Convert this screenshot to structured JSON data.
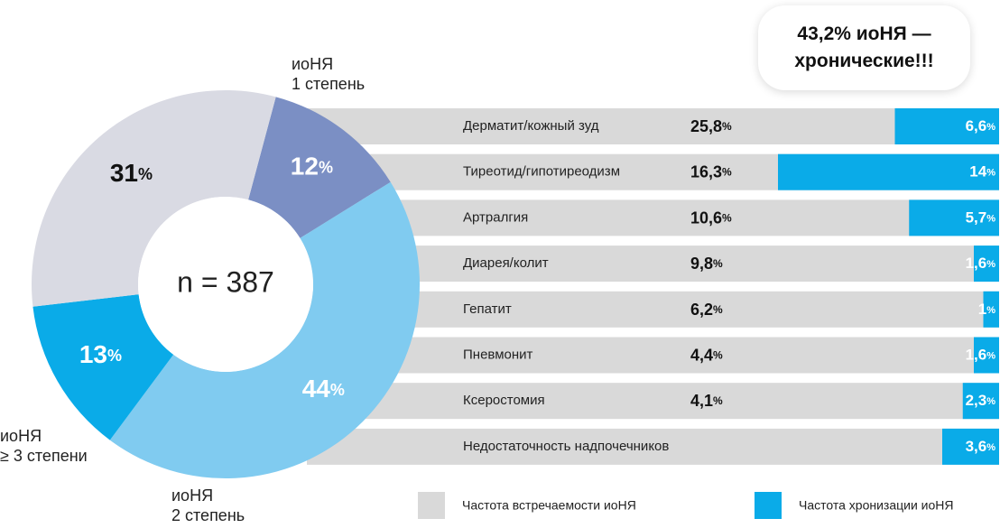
{
  "chart_data": [
    {
      "type": "donut",
      "center_label": "n = 387",
      "categories": [
        "иоНЯ\n1 степень",
        "иоНЯ\n2 степень",
        "иоНЯ\n≥ 3 степени",
        null
      ],
      "values": [
        12,
        44,
        13,
        31
      ],
      "value_labels": [
        "12%",
        "44%",
        "13%",
        "31%"
      ],
      "colors": [
        "#7b8fc4",
        "#80cbf0",
        "#0aabe8",
        "#d9dae3"
      ]
    },
    {
      "type": "bar",
      "annotation": "43,2% иоНЯ —\nхронические!!!",
      "categories": [
        "Дерматит/кожный зуд",
        "Тиреотид/гипотиреодизм",
        "Артралгия",
        "Диарея/колит",
        "Гепатит",
        "Пневмонит",
        "Ксеростомия",
        "Недостаточность надпочечников"
      ],
      "series": [
        {
          "name": "Частота встречаемости иоНЯ",
          "color": "#d9d9d9",
          "values": [
            25.8,
            16.3,
            10.6,
            9.8,
            6.2,
            4.4,
            4.1,
            null
          ],
          "value_labels": [
            "25,8%",
            "16,3%",
            "10,6%",
            "9,8%",
            "6,2%",
            "4,4%",
            "4,1%",
            null
          ]
        },
        {
          "name": "Частота хронизации иоНЯ",
          "color": "#0aabe8",
          "values": [
            6.6,
            14,
            5.7,
            1.6,
            1,
            1.6,
            2.3,
            3.6
          ],
          "value_labels": [
            "6,6%",
            "14%",
            "5,7%",
            "1,6%",
            "1%",
            "1,6%",
            "2,3%",
            "3,6%"
          ]
        }
      ]
    }
  ]
}
